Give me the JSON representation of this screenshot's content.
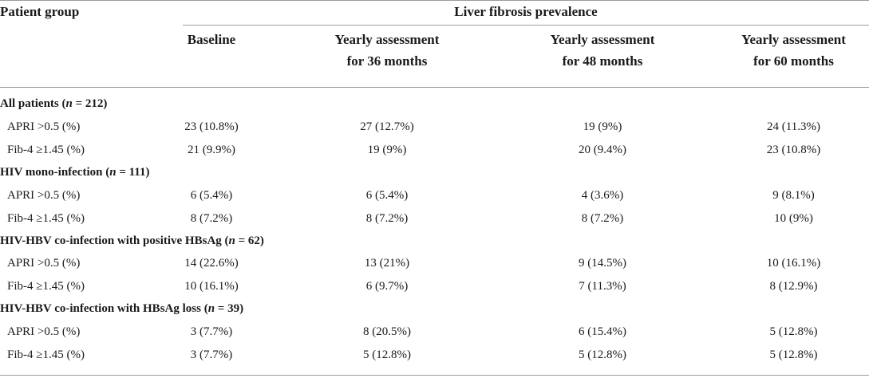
{
  "header": {
    "group_label": "Patient group",
    "span_label": "Liver fibrosis prevalence",
    "columns": [
      {
        "line1": "Baseline",
        "line2": ""
      },
      {
        "line1": "Yearly assessment",
        "line2": "for 36 months"
      },
      {
        "line1": "Yearly assessment",
        "line2": "for 48 months"
      },
      {
        "line1": "Yearly assessment",
        "line2": "for 60 months"
      }
    ]
  },
  "groups": [
    {
      "title_pre": "All patients (",
      "n_symbol": "n",
      "title_post": " = 212)",
      "rows": [
        {
          "label": "APRI >0.5 (%)",
          "values": [
            "23 (10.8%)",
            "27 (12.7%)",
            "19 (9%)",
            "24 (11.3%)"
          ]
        },
        {
          "label": "Fib-4 ≥1.45 (%)",
          "values": [
            "21 (9.9%)",
            "19 (9%)",
            "20 (9.4%)",
            "23 (10.8%)"
          ]
        }
      ]
    },
    {
      "title_pre": "HIV mono-infection (",
      "n_symbol": "n",
      "title_post": " = 111)",
      "rows": [
        {
          "label": "APRI >0.5 (%)",
          "values": [
            "6 (5.4%)",
            "6 (5.4%)",
            "4 (3.6%)",
            "9 (8.1%)"
          ]
        },
        {
          "label": "Fib-4 ≥1.45 (%)",
          "values": [
            "8 (7.2%)",
            "8 (7.2%)",
            "8 (7.2%)",
            "10 (9%)"
          ]
        }
      ]
    },
    {
      "title_pre": "HIV-HBV co-infection with positive HBsAg (",
      "n_symbol": "n",
      "title_post": " = 62)",
      "rows": [
        {
          "label": "APRI >0.5 (%)",
          "values": [
            "14 (22.6%)",
            "13 (21%)",
            "9 (14.5%)",
            "10 (16.1%)"
          ]
        },
        {
          "label": "Fib-4 ≥1.45 (%)",
          "values": [
            "10 (16.1%)",
            "6 (9.7%)",
            "7 (11.3%)",
            "8 (12.9%)"
          ]
        }
      ]
    },
    {
      "title_pre": "HIV-HBV co-infection with HBsAg loss (",
      "n_symbol": "n",
      "title_post": " = 39)",
      "rows": [
        {
          "label": "APRI >0.5 (%)",
          "values": [
            "3 (7.7%)",
            "8 (20.5%)",
            "6 (15.4%)",
            "5 (12.8%)"
          ]
        },
        {
          "label": "Fib-4 ≥1.45 (%)",
          "values": [
            "3 (7.7%)",
            "5 (12.8%)",
            "5 (12.8%)",
            "5 (12.8%)"
          ]
        }
      ]
    }
  ]
}
